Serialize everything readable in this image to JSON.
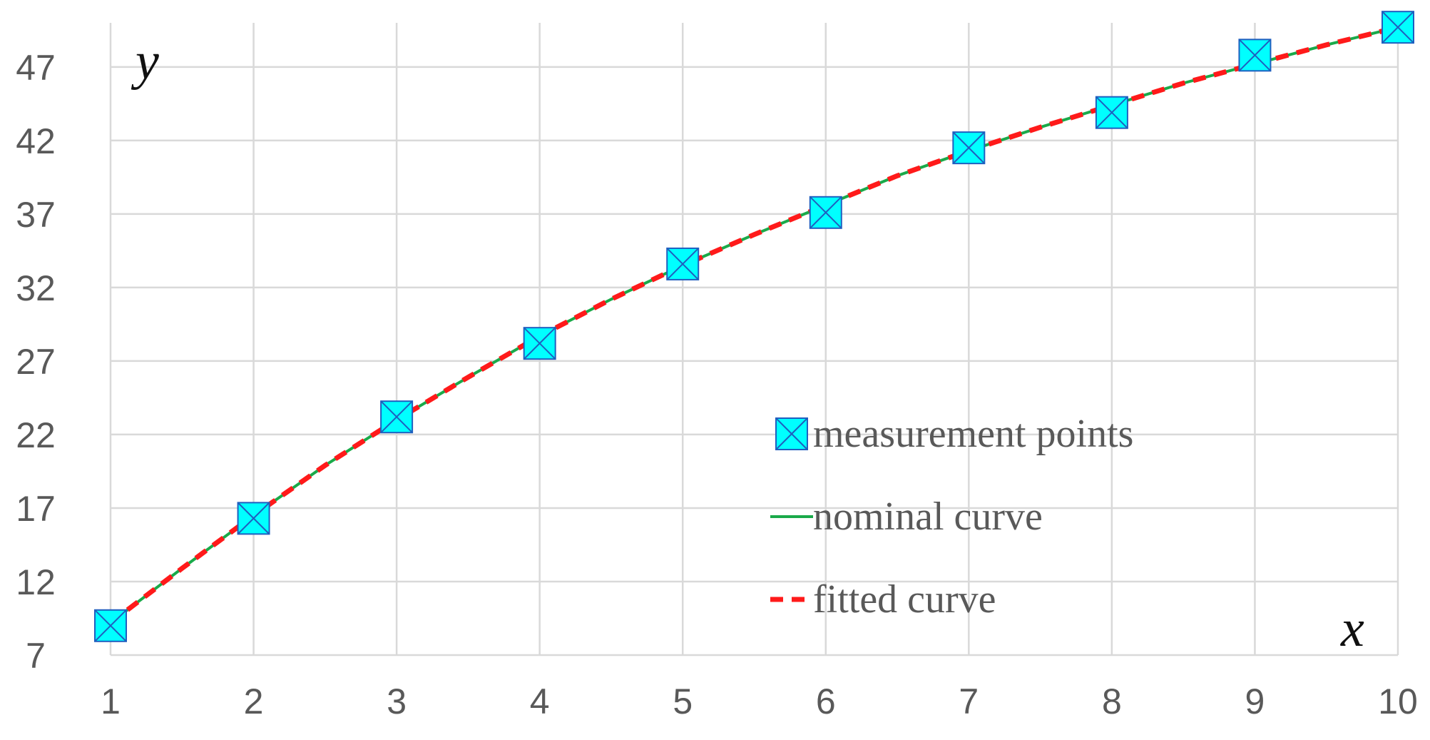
{
  "chart_data": {
    "type": "line",
    "title": "",
    "xlabel": "x",
    "ylabel": "y",
    "xlim": [
      1,
      10
    ],
    "ylim": [
      7,
      50
    ],
    "x_ticks": [
      1,
      2,
      3,
      4,
      5,
      6,
      7,
      8,
      9,
      10
    ],
    "y_ticks": [
      7,
      12,
      17,
      22,
      27,
      32,
      37,
      42,
      47
    ],
    "grid": true,
    "legend_position": "center-right",
    "series": [
      {
        "name": "measurement points",
        "kind": "scatter",
        "marker": "square-x",
        "color": "#00ffff",
        "marker_edge_color": "#1f5fbf",
        "x": [
          1,
          2,
          3,
          4,
          5,
          6,
          7,
          8,
          9,
          10
        ],
        "y": [
          9.0,
          16.3,
          23.2,
          28.2,
          33.6,
          37.1,
          41.5,
          43.9,
          47.8,
          49.7
        ]
      },
      {
        "name": "nominal curve",
        "kind": "line",
        "style": "solid",
        "color": "#1aaa4a",
        "x": [
          1,
          1.5,
          2,
          2.5,
          3,
          3.5,
          4,
          4.5,
          5,
          5.5,
          6,
          6.5,
          7,
          7.5,
          8,
          8.5,
          9,
          9.5,
          10
        ],
        "y": [
          9.2,
          12.9,
          16.5,
          19.9,
          23.0,
          25.9,
          28.7,
          31.2,
          33.5,
          35.6,
          37.6,
          39.6,
          41.3,
          42.9,
          44.4,
          45.9,
          47.2,
          48.5,
          49.7
        ]
      },
      {
        "name": "fitted curve",
        "kind": "line",
        "style": "dashed",
        "color": "#ff1a1a",
        "x": [
          1,
          1.5,
          2,
          2.5,
          3,
          3.5,
          4,
          4.5,
          5,
          5.5,
          6,
          6.5,
          7,
          7.5,
          8,
          8.5,
          9,
          9.5,
          10
        ],
        "y": [
          9.2,
          12.9,
          16.5,
          19.9,
          23.0,
          25.9,
          28.7,
          31.2,
          33.5,
          35.6,
          37.6,
          39.6,
          41.3,
          42.9,
          44.4,
          45.9,
          47.2,
          48.5,
          49.7
        ]
      }
    ]
  }
}
